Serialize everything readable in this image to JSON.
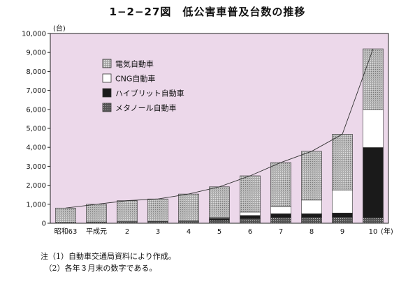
{
  "title": "1−2−27図　低公害車普及台数の推移",
  "notes": [
    "注（1）自動車交通局資料により作成。",
    "　（2）各年３月末の数字である。"
  ],
  "chart_data": {
    "type": "bar",
    "stacked": true,
    "y_unit": "(台)",
    "x_unit": "(年)",
    "categories": [
      "昭和63",
      "平成元",
      "2",
      "3",
      "4",
      "5",
      "6",
      "7",
      "8",
      "9",
      "10"
    ],
    "ylim": [
      0,
      10000
    ],
    "yticks": [
      "0",
      "1,000",
      "2,000",
      "3,000",
      "4,000",
      "5,000",
      "6,000",
      "7,000",
      "8,000",
      "9,000",
      "10,000"
    ],
    "series": [
      {
        "name": "メタノール自動車",
        "values": [
          50,
          70,
          90,
          100,
          120,
          160,
          240,
          300,
          310,
          320,
          290
        ],
        "pattern": "dots"
      },
      {
        "name": "ハイブリット自動車",
        "values": [
          0,
          0,
          0,
          0,
          0,
          100,
          170,
          200,
          190,
          220,
          3700
        ],
        "pattern": "black"
      },
      {
        "name": "CNG自動車",
        "values": [
          0,
          0,
          0,
          0,
          0,
          50,
          180,
          370,
          720,
          1200,
          2000
        ],
        "pattern": "white"
      },
      {
        "name": "電気自動車",
        "values": [
          750,
          930,
          1100,
          1180,
          1420,
          1610,
          1910,
          2330,
          2570,
          2950,
          3200
        ],
        "pattern": "gray"
      }
    ],
    "legend_order": [
      "電気自動車",
      "CNG自動車",
      "ハイブリット自動車",
      "メタノール自動車"
    ],
    "legend_position": "top-left",
    "colors": {
      "plot_bg": "#ecd8ea",
      "gray_fill": "#b8b8b8",
      "black_fill": "#1a1a1a"
    }
  }
}
